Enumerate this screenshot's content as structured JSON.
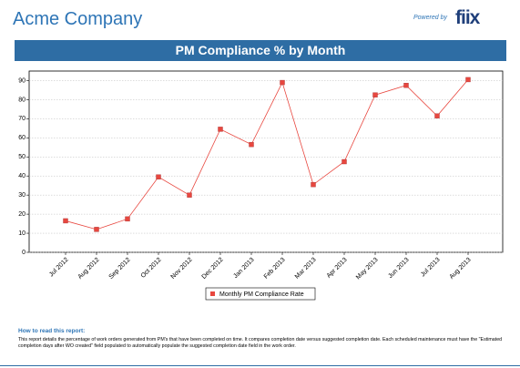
{
  "header": {
    "company": "Acme Company",
    "powered_by": "Powered by",
    "logo": "fiix"
  },
  "chart_data": {
    "type": "line",
    "title": "PM Compliance % by Month",
    "categories": [
      "Jul 2012",
      "Aug 2012",
      "Sep 2012",
      "Oct 2012",
      "Nov 2012",
      "Dec 2012",
      "Jan 2013",
      "Feb 2013",
      "Mar 2013",
      "Apr 2013",
      "May 2013",
      "Jun 2013",
      "Jul 2013",
      "Aug 2013"
    ],
    "series": [
      {
        "name": "Monthly PM Compliance Rate",
        "color": "#e8473f",
        "values": [
          16.5,
          12,
          17.5,
          39.5,
          30,
          64.5,
          56.5,
          89,
          35.5,
          47.5,
          82.5,
          87.5,
          71.5,
          90.5
        ]
      }
    ],
    "ylim": [
      0,
      95
    ],
    "yticks": [
      0,
      10,
      20,
      30,
      40,
      50,
      60,
      70,
      80,
      90
    ],
    "grid": true,
    "legend_position": "bottom"
  },
  "notes": {
    "heading": "How to read this report:",
    "text": "This report details the percentage of work orders generated from PM's that have been completed on time. It compares completion date versus suggested completion date. Each scheduled maintenance must have the \"Estimated completion days after WO created\" field populated to automatically populate the suggested completion date field in the work order."
  }
}
